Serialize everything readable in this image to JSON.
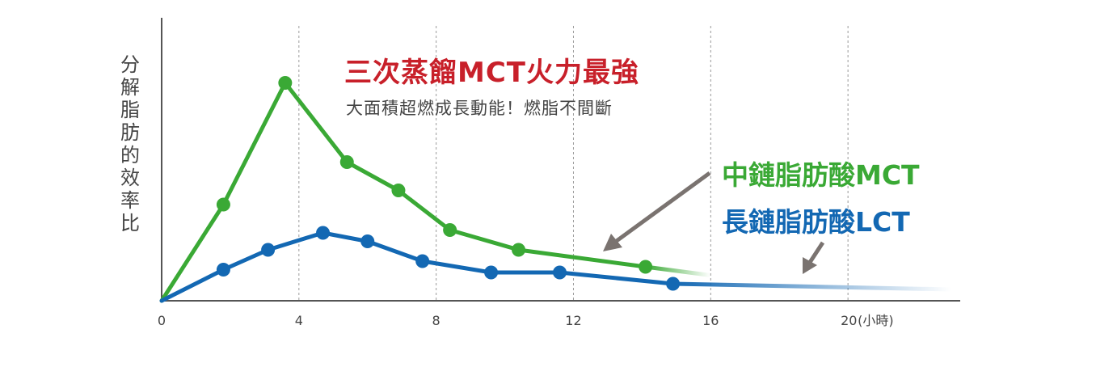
{
  "chart_data": {
    "type": "line",
    "title": "三次蒸餾MCT火力最強",
    "subtitle": "大面積超燃成長動能！燃脂不間斷",
    "ylabel": "分解脂肪的效率比",
    "xlabel": "(小時)",
    "x_ticks": [
      "0",
      "4",
      "8",
      "12",
      "16",
      "20"
    ],
    "x_tick_values": [
      0,
      4,
      8,
      12,
      16,
      20
    ],
    "xlim": [
      0,
      23.2
    ],
    "ylim": [
      0,
      100
    ],
    "grid": "vertical-dashed",
    "series": [
      {
        "name": "中鏈脂肪酸MCT",
        "color": "#3aa935",
        "x": [
          0,
          1.8,
          3.6,
          5.4,
          6.9,
          8.4,
          10.4,
          14.1
        ],
        "y": [
          0,
          34,
          77,
          49,
          39,
          25,
          18,
          12
        ],
        "tail_x": [
          16.0
        ],
        "tail_y": [
          9
        ]
      },
      {
        "name": "長鏈脂肪酸LCT",
        "color": "#1368b3",
        "x": [
          0,
          1.8,
          3.1,
          4.7,
          6.0,
          7.6,
          9.6,
          11.6,
          14.9
        ],
        "y": [
          0,
          11,
          18,
          24,
          21,
          14,
          10,
          10,
          6
        ],
        "tail_x": [
          19.0,
          23.0
        ],
        "tail_y": [
          5,
          4
        ]
      }
    ]
  }
}
